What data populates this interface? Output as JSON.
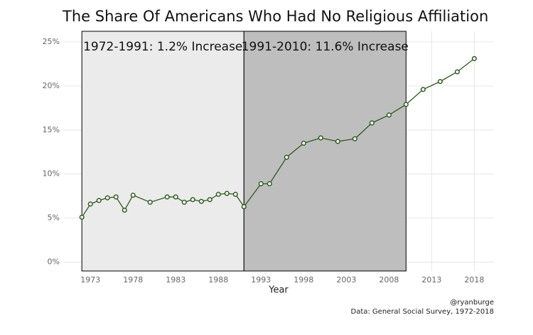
{
  "chart_data": {
    "type": "line",
    "title": "The Share Of Americans Who Had No Religious Affiliation",
    "x_label": "Year",
    "caption": [
      "@ryanburge",
      "Data: General Social Survey, 1972-2018"
    ],
    "x": [
      1972,
      1973,
      1974,
      1975,
      1976,
      1977,
      1978,
      1980,
      1982,
      1983,
      1984,
      1985,
      1986,
      1987,
      1988,
      1989,
      1990,
      1991,
      1993,
      1994,
      1996,
      1998,
      2000,
      2002,
      2004,
      2006,
      2008,
      2010,
      2012,
      2014,
      2016,
      2018
    ],
    "values": [
      5.1,
      6.6,
      7.0,
      7.3,
      7.4,
      5.9,
      7.6,
      6.8,
      7.4,
      7.4,
      6.8,
      7.1,
      6.9,
      7.1,
      7.7,
      7.8,
      7.7,
      6.3,
      8.9,
      8.9,
      11.9,
      13.5,
      14.1,
      13.7,
      14.0,
      15.8,
      16.7,
      17.9,
      19.6,
      20.5,
      21.6,
      23.1
    ],
    "color": "#2d5a1b",
    "regions": [
      {
        "start": 1972,
        "end": 1991,
        "label": "1972-1991: 1.2% Increase",
        "color": "#ebebeb"
      },
      {
        "start": 1991,
        "end": 2010,
        "label": "1991-2010: 11.6% Increase",
        "color": "#bebebe"
      }
    ],
    "xlim": [
      1969.9,
      2020.3
    ],
    "ylim": [
      -1,
      26.2
    ],
    "xticks": [
      1973,
      1978,
      1983,
      1988,
      1993,
      1998,
      2003,
      2008,
      2013,
      2018
    ],
    "yticks": [
      {
        "value": 0,
        "label": "0%"
      },
      {
        "value": 5,
        "label": "5%"
      },
      {
        "value": 10,
        "label": "10%"
      },
      {
        "value": 15,
        "label": "15%"
      },
      {
        "value": 20,
        "label": "20%"
      },
      {
        "value": 25,
        "label": "25%"
      }
    ],
    "grid": true
  }
}
